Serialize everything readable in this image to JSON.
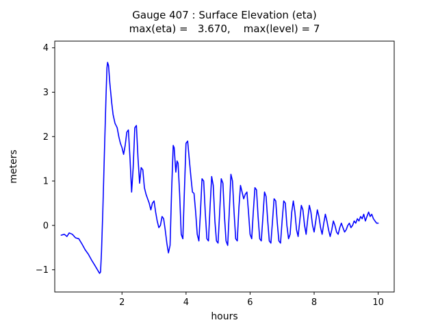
{
  "chart_data": {
    "type": "line",
    "title": "Gauge 407 : Surface Elevation (eta)",
    "subtitle": "max(eta) =   3.670,    max(level) = 7",
    "xlabel": "hours",
    "ylabel": "meters",
    "xlim": [
      -0.1,
      10.5
    ],
    "ylim": [
      -1.5,
      4.15
    ],
    "xticks": [
      2,
      4,
      6,
      8,
      10
    ],
    "xtick_labels": [
      "2",
      "4",
      "6",
      "8",
      "10"
    ],
    "yticks": [
      -1,
      0,
      1,
      2,
      3,
      4
    ],
    "ytick_labels": [
      "−1",
      "0",
      "1",
      "2",
      "3",
      "4"
    ],
    "grid": false,
    "legend": null,
    "line_color": "#0000ff",
    "max_eta": 3.67,
    "max_level": 7,
    "series": [
      {
        "name": "eta",
        "points": [
          [
            0.1,
            -0.22
          ],
          [
            0.2,
            -0.2
          ],
          [
            0.28,
            -0.25
          ],
          [
            0.35,
            -0.17
          ],
          [
            0.45,
            -0.2
          ],
          [
            0.55,
            -0.28
          ],
          [
            0.65,
            -0.3
          ],
          [
            0.75,
            -0.42
          ],
          [
            0.85,
            -0.55
          ],
          [
            0.95,
            -0.65
          ],
          [
            1.05,
            -0.78
          ],
          [
            1.15,
            -0.9
          ],
          [
            1.25,
            -1.02
          ],
          [
            1.3,
            -1.08
          ],
          [
            1.33,
            -1.05
          ],
          [
            1.36,
            -0.6
          ],
          [
            1.4,
            0.3
          ],
          [
            1.45,
            1.6
          ],
          [
            1.5,
            2.9
          ],
          [
            1.53,
            3.55
          ],
          [
            1.55,
            3.67
          ],
          [
            1.58,
            3.6
          ],
          [
            1.62,
            3.2
          ],
          [
            1.68,
            2.75
          ],
          [
            1.72,
            2.5
          ],
          [
            1.78,
            2.3
          ],
          [
            1.85,
            2.2
          ],
          [
            1.9,
            2.0
          ],
          [
            1.95,
            1.85
          ],
          [
            2.0,
            1.75
          ],
          [
            2.05,
            1.6
          ],
          [
            2.1,
            1.8
          ],
          [
            2.15,
            2.1
          ],
          [
            2.2,
            2.15
          ],
          [
            2.25,
            1.5
          ],
          [
            2.3,
            0.75
          ],
          [
            2.35,
            1.3
          ],
          [
            2.4,
            2.2
          ],
          [
            2.45,
            2.25
          ],
          [
            2.5,
            1.5
          ],
          [
            2.55,
            0.95
          ],
          [
            2.6,
            1.3
          ],
          [
            2.65,
            1.25
          ],
          [
            2.7,
            0.85
          ],
          [
            2.75,
            0.7
          ],
          [
            2.8,
            0.6
          ],
          [
            2.85,
            0.5
          ],
          [
            2.9,
            0.35
          ],
          [
            2.95,
            0.5
          ],
          [
            3.0,
            0.55
          ],
          [
            3.05,
            0.3
          ],
          [
            3.1,
            0.1
          ],
          [
            3.15,
            -0.05
          ],
          [
            3.2,
            0.0
          ],
          [
            3.25,
            0.2
          ],
          [
            3.3,
            0.15
          ],
          [
            3.35,
            -0.1
          ],
          [
            3.4,
            -0.4
          ],
          [
            3.45,
            -0.62
          ],
          [
            3.5,
            -0.45
          ],
          [
            3.55,
            0.8
          ],
          [
            3.6,
            1.8
          ],
          [
            3.63,
            1.75
          ],
          [
            3.68,
            1.2
          ],
          [
            3.72,
            1.45
          ],
          [
            3.75,
            1.4
          ],
          [
            3.8,
            0.7
          ],
          [
            3.85,
            -0.2
          ],
          [
            3.9,
            -0.3
          ],
          [
            3.95,
            0.8
          ],
          [
            4.0,
            1.85
          ],
          [
            4.05,
            1.9
          ],
          [
            4.1,
            1.5
          ],
          [
            4.15,
            1.1
          ],
          [
            4.2,
            0.75
          ],
          [
            4.25,
            0.72
          ],
          [
            4.3,
            0.3
          ],
          [
            4.35,
            -0.2
          ],
          [
            4.4,
            -0.35
          ],
          [
            4.45,
            0.3
          ],
          [
            4.5,
            1.05
          ],
          [
            4.55,
            1.0
          ],
          [
            4.6,
            0.3
          ],
          [
            4.65,
            -0.3
          ],
          [
            4.7,
            -0.35
          ],
          [
            4.75,
            0.4
          ],
          [
            4.8,
            1.1
          ],
          [
            4.85,
            0.9
          ],
          [
            4.9,
            0.1
          ],
          [
            4.95,
            -0.35
          ],
          [
            5.0,
            -0.4
          ],
          [
            5.05,
            0.3
          ],
          [
            5.1,
            1.05
          ],
          [
            5.15,
            0.95
          ],
          [
            5.2,
            0.2
          ],
          [
            5.25,
            -0.35
          ],
          [
            5.3,
            -0.45
          ],
          [
            5.35,
            0.3
          ],
          [
            5.4,
            1.15
          ],
          [
            5.45,
            1.0
          ],
          [
            5.5,
            0.3
          ],
          [
            5.55,
            -0.3
          ],
          [
            5.6,
            -0.35
          ],
          [
            5.65,
            0.4
          ],
          [
            5.7,
            0.9
          ],
          [
            5.75,
            0.75
          ],
          [
            5.8,
            0.6
          ],
          [
            5.85,
            0.7
          ],
          [
            5.9,
            0.75
          ],
          [
            5.95,
            0.3
          ],
          [
            6.0,
            -0.2
          ],
          [
            6.05,
            -0.3
          ],
          [
            6.1,
            0.3
          ],
          [
            6.15,
            0.85
          ],
          [
            6.2,
            0.8
          ],
          [
            6.25,
            0.2
          ],
          [
            6.3,
            -0.3
          ],
          [
            6.35,
            -0.35
          ],
          [
            6.4,
            0.2
          ],
          [
            6.45,
            0.75
          ],
          [
            6.5,
            0.65
          ],
          [
            6.55,
            0.1
          ],
          [
            6.6,
            -0.35
          ],
          [
            6.65,
            -0.4
          ],
          [
            6.7,
            0.1
          ],
          [
            6.75,
            0.6
          ],
          [
            6.8,
            0.55
          ],
          [
            6.85,
            0.05
          ],
          [
            6.9,
            -0.35
          ],
          [
            6.95,
            -0.4
          ],
          [
            7.0,
            0.1
          ],
          [
            7.05,
            0.55
          ],
          [
            7.1,
            0.5
          ],
          [
            7.15,
            0.0
          ],
          [
            7.2,
            -0.3
          ],
          [
            7.25,
            -0.2
          ],
          [
            7.3,
            0.3
          ],
          [
            7.35,
            0.55
          ],
          [
            7.4,
            0.3
          ],
          [
            7.45,
            -0.1
          ],
          [
            7.5,
            -0.25
          ],
          [
            7.55,
            0.1
          ],
          [
            7.6,
            0.45
          ],
          [
            7.65,
            0.35
          ],
          [
            7.7,
            0.0
          ],
          [
            7.75,
            -0.2
          ],
          [
            7.8,
            0.15
          ],
          [
            7.85,
            0.45
          ],
          [
            7.9,
            0.3
          ],
          [
            7.95,
            0.0
          ],
          [
            8.0,
            -0.15
          ],
          [
            8.05,
            0.1
          ],
          [
            8.1,
            0.35
          ],
          [
            8.15,
            0.2
          ],
          [
            8.2,
            -0.05
          ],
          [
            8.25,
            -0.2
          ],
          [
            8.3,
            0.05
          ],
          [
            8.35,
            0.25
          ],
          [
            8.4,
            0.1
          ],
          [
            8.45,
            -0.1
          ],
          [
            8.5,
            -0.25
          ],
          [
            8.55,
            -0.1
          ],
          [
            8.6,
            0.1
          ],
          [
            8.65,
            0.0
          ],
          [
            8.7,
            -0.15
          ],
          [
            8.75,
            -0.2
          ],
          [
            8.8,
            -0.05
          ],
          [
            8.85,
            0.05
          ],
          [
            8.9,
            -0.05
          ],
          [
            8.95,
            -0.15
          ],
          [
            9.0,
            -0.1
          ],
          [
            9.05,
            0.0
          ],
          [
            9.1,
            0.05
          ],
          [
            9.15,
            -0.05
          ],
          [
            9.2,
            0.0
          ],
          [
            9.25,
            0.1
          ],
          [
            9.3,
            0.05
          ],
          [
            9.35,
            0.15
          ],
          [
            9.4,
            0.1
          ],
          [
            9.45,
            0.2
          ],
          [
            9.5,
            0.15
          ],
          [
            9.55,
            0.25
          ],
          [
            9.6,
            0.1
          ],
          [
            9.65,
            0.2
          ],
          [
            9.7,
            0.3
          ],
          [
            9.75,
            0.2
          ],
          [
            9.8,
            0.25
          ],
          [
            9.85,
            0.15
          ],
          [
            9.9,
            0.1
          ],
          [
            9.95,
            0.05
          ],
          [
            10.0,
            0.05
          ]
        ]
      }
    ]
  }
}
